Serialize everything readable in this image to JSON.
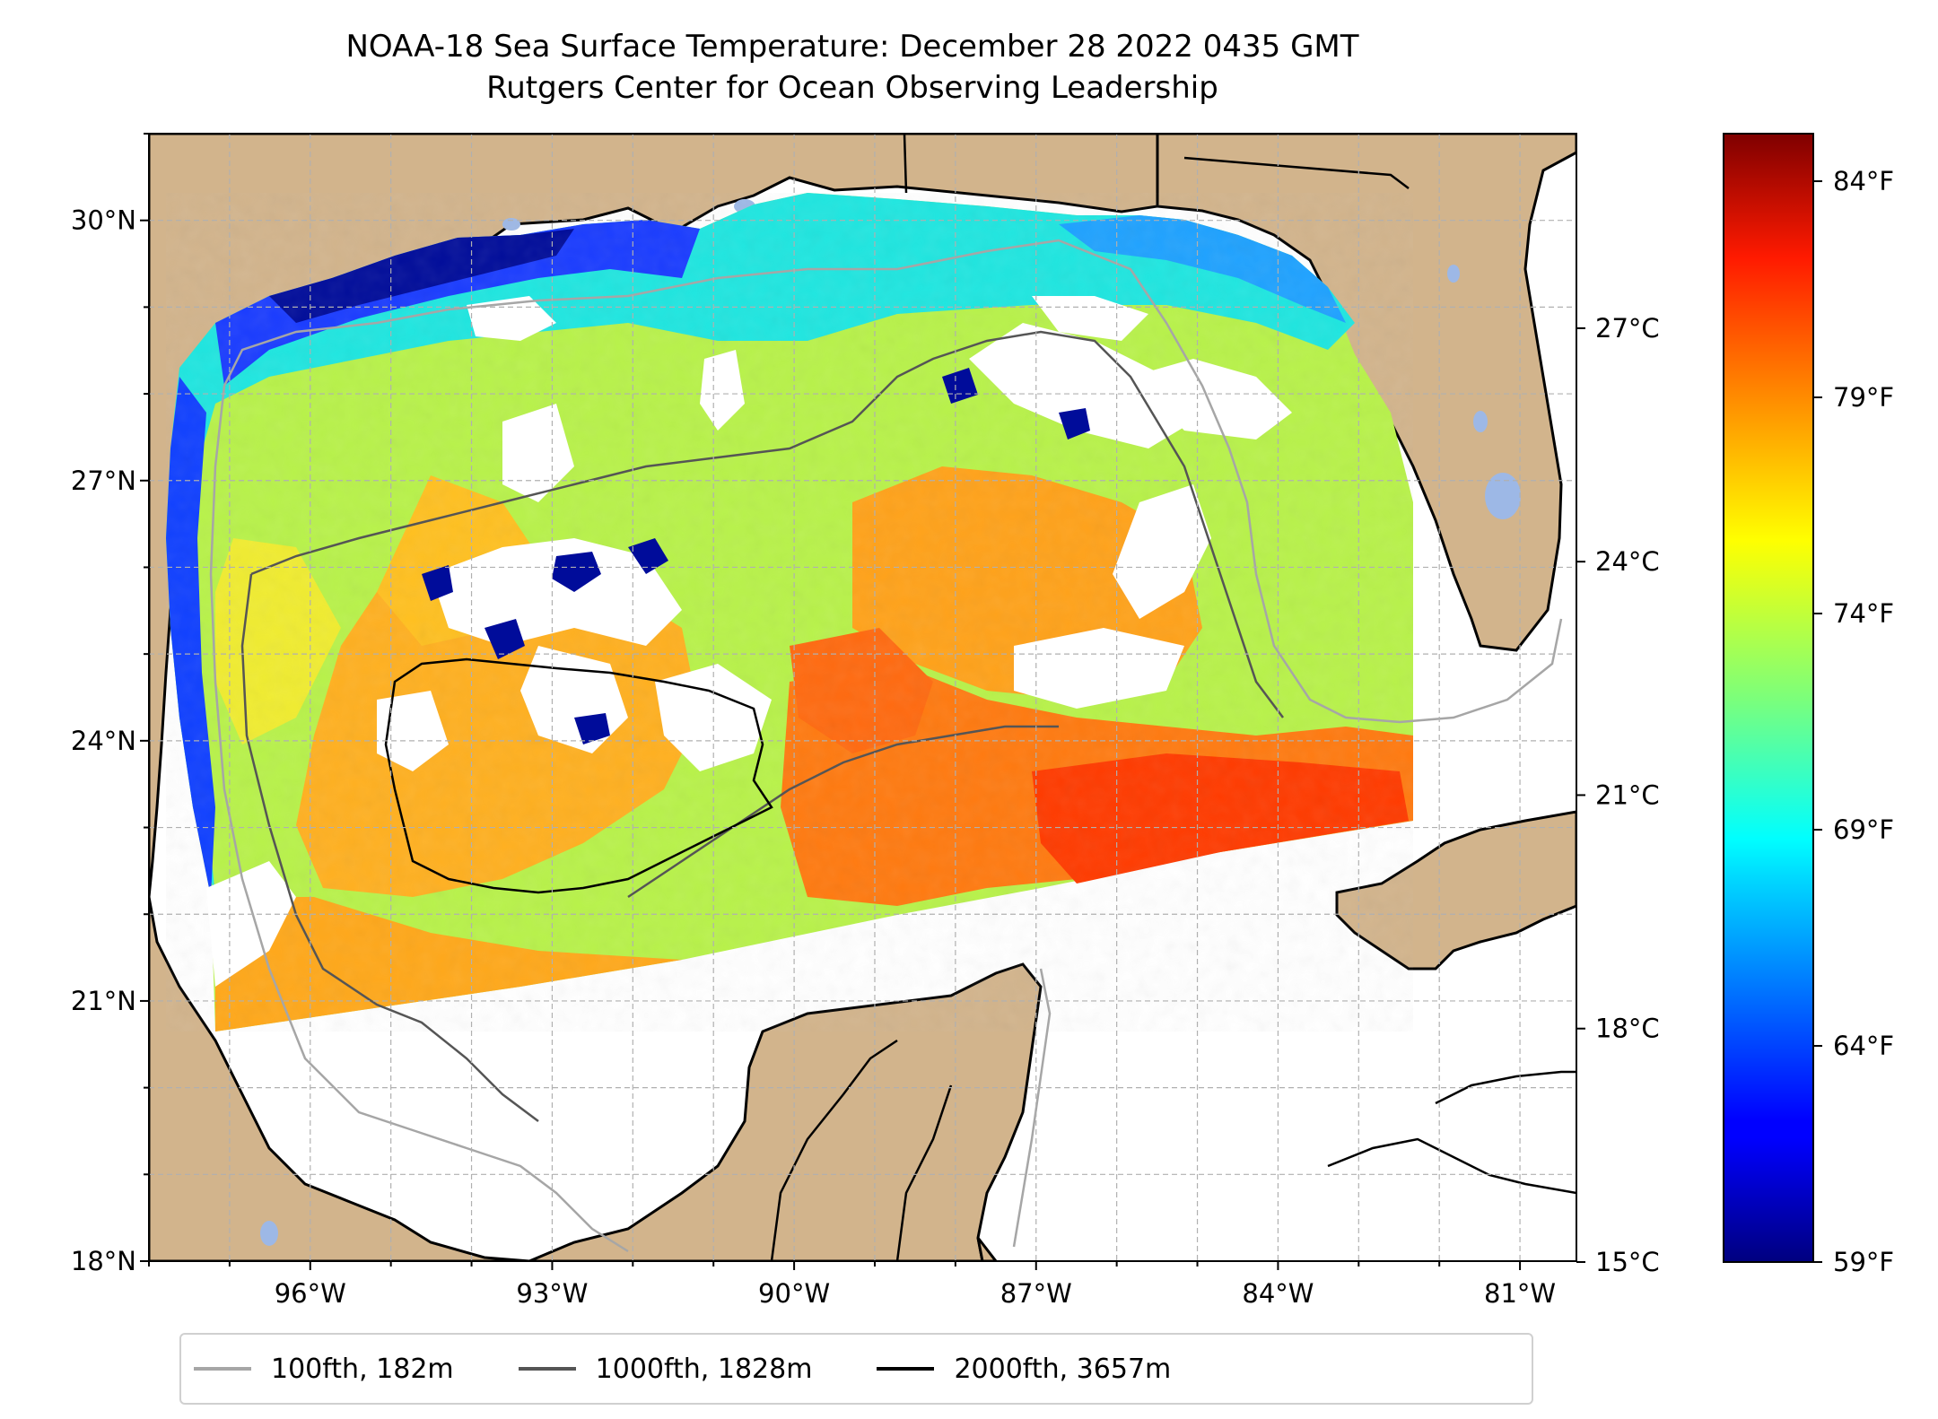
{
  "title": {
    "line1": "NOAA-18 Sea Surface Temperature: December 28 2022 0435 GMT",
    "line2": "Rutgers Center for Ocean Observing Leadership"
  },
  "map": {
    "lon_range": [
      -98.0,
      -80.3
    ],
    "lat_range": [
      18.0,
      31.0
    ],
    "lon_ticks": [
      {
        "value": -96,
        "label": "96°W"
      },
      {
        "value": -93,
        "label": "93°W"
      },
      {
        "value": -90,
        "label": "90°W"
      },
      {
        "value": -87,
        "label": "87°W"
      },
      {
        "value": -84,
        "label": "84°W"
      },
      {
        "value": -81,
        "label": "81°W"
      }
    ],
    "lat_ticks": [
      {
        "value": 30,
        "label": "30°N"
      },
      {
        "value": 27,
        "label": "27°N"
      },
      {
        "value": 24,
        "label": "24°N"
      },
      {
        "value": 21,
        "label": "21°N"
      },
      {
        "value": 18,
        "label": "18°N"
      }
    ],
    "gridlines": true,
    "colors": {
      "land": "#d2b48c",
      "lakes": "#9db8e6",
      "ocean": "#ffffff"
    }
  },
  "colorbar": {
    "colormap": "jet",
    "range_celsius": [
      15.0,
      29.5
    ],
    "celsius_ticks": [
      {
        "value": 27,
        "label": "27°C"
      },
      {
        "value": 24,
        "label": "24°C"
      },
      {
        "value": 21,
        "label": "21°C"
      },
      {
        "value": 18,
        "label": "18°C"
      },
      {
        "value": 15,
        "label": "15°C"
      }
    ],
    "fahrenheit_ticks": [
      {
        "value": 84,
        "label": "84°F"
      },
      {
        "value": 79,
        "label": "79°F"
      },
      {
        "value": 74,
        "label": "74°F"
      },
      {
        "value": 69,
        "label": "69°F"
      },
      {
        "value": 64,
        "label": "64°F"
      },
      {
        "value": 59,
        "label": "59°F"
      }
    ]
  },
  "legend": {
    "items": [
      {
        "label": "100fth, 182m",
        "color": "#a6a6a6"
      },
      {
        "label": "1000fth, 1828m",
        "color": "#555555"
      },
      {
        "label": "2000fth, 3657m",
        "color": "#000000"
      }
    ]
  }
}
